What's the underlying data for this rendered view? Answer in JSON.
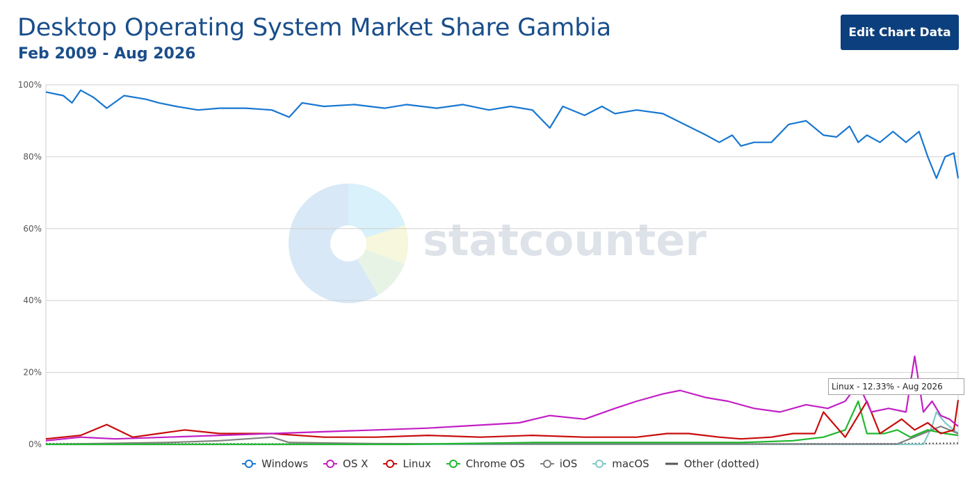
{
  "header": {
    "title": "Desktop Operating System Market Share Gambia",
    "subtitle": "Feb 2009 - Aug 2026",
    "edit_button": "Edit Chart Data"
  },
  "watermark": {
    "text": "statcounter"
  },
  "tooltip": {
    "text": "Linux - 12.33% - Aug 2026"
  },
  "colors": {
    "Windows": "#1777d0",
    "OS X": "#c21fc4",
    "Linux": "#c80b0b",
    "Chrome OS": "#1fb82e",
    "iOS": "#808080",
    "macOS": "#80c8c8",
    "Other (dotted)": "#555555",
    "title": "#1a4e8a",
    "button": "#0c3f7d"
  },
  "legend": [
    {
      "label": "Windows",
      "marker": "circle-icon"
    },
    {
      "label": "OS X",
      "marker": "circle-icon"
    },
    {
      "label": "Linux",
      "marker": "circle-icon"
    },
    {
      "label": "Chrome OS",
      "marker": "circle-icon"
    },
    {
      "label": "iOS",
      "marker": "circle-icon"
    },
    {
      "label": "macOS",
      "marker": "circle-icon"
    },
    {
      "label": "Other (dotted)",
      "marker": "line-icon"
    }
  ],
  "chart_data": {
    "type": "line",
    "x_start": "2009-02",
    "x_end": "2026-08",
    "ylim": [
      0,
      100
    ],
    "yticks": [
      "0%",
      "20%",
      "40%",
      "60%",
      "80%",
      "100%"
    ],
    "grid": true,
    "legend_position": "bottom",
    "series": [
      {
        "name": "Windows",
        "points": [
          [
            "2009-02",
            98
          ],
          [
            "2009-06",
            97
          ],
          [
            "2009-08",
            95
          ],
          [
            "2009-10",
            98.5
          ],
          [
            "2010-01",
            96.5
          ],
          [
            "2010-04",
            93.5
          ],
          [
            "2010-08",
            97
          ],
          [
            "2011-01",
            96
          ],
          [
            "2011-04",
            95
          ],
          [
            "2011-08",
            94
          ],
          [
            "2012-01",
            93
          ],
          [
            "2012-06",
            93.5
          ],
          [
            "2012-12",
            93.5
          ],
          [
            "2013-06",
            93
          ],
          [
            "2013-10",
            91
          ],
          [
            "2014-01",
            95
          ],
          [
            "2014-06",
            94
          ],
          [
            "2015-01",
            94.5
          ],
          [
            "2015-08",
            93.5
          ],
          [
            "2016-01",
            94.5
          ],
          [
            "2016-08",
            93.5
          ],
          [
            "2017-02",
            94.5
          ],
          [
            "2017-08",
            93
          ],
          [
            "2018-01",
            94
          ],
          [
            "2018-06",
            93
          ],
          [
            "2018-10",
            88
          ],
          [
            "2019-01",
            94
          ],
          [
            "2019-06",
            91.5
          ],
          [
            "2019-10",
            94
          ],
          [
            "2020-01",
            92
          ],
          [
            "2020-06",
            93
          ],
          [
            "2020-12",
            92
          ],
          [
            "2021-05",
            89
          ],
          [
            "2021-10",
            86
          ],
          [
            "2022-01",
            84
          ],
          [
            "2022-04",
            86
          ],
          [
            "2022-06",
            83
          ],
          [
            "2022-09",
            84
          ],
          [
            "2023-01",
            84
          ],
          [
            "2023-05",
            89
          ],
          [
            "2023-09",
            90
          ],
          [
            "2024-01",
            86
          ],
          [
            "2024-04",
            85.5
          ],
          [
            "2024-07",
            88.5
          ],
          [
            "2024-09",
            84
          ],
          [
            "2024-11",
            86
          ],
          [
            "2025-02",
            84
          ],
          [
            "2025-05",
            87
          ],
          [
            "2025-08",
            84
          ],
          [
            "2025-11",
            87
          ],
          [
            "2026-01",
            80
          ],
          [
            "2026-03",
            74
          ],
          [
            "2026-05",
            80
          ],
          [
            "2026-07",
            81
          ],
          [
            "2026-08",
            74
          ]
        ]
      },
      {
        "name": "OS X",
        "points": [
          [
            "2009-02",
            1
          ],
          [
            "2009-10",
            2
          ],
          [
            "2010-06",
            1.5
          ],
          [
            "2011-06",
            2
          ],
          [
            "2012-06",
            2.5
          ],
          [
            "2013-06",
            3
          ],
          [
            "2014-06",
            3.5
          ],
          [
            "2015-06",
            4
          ],
          [
            "2016-06",
            4.5
          ],
          [
            "2017-01",
            5
          ],
          [
            "2017-08",
            5.5
          ],
          [
            "2018-03",
            6
          ],
          [
            "2018-10",
            8
          ],
          [
            "2019-06",
            7
          ],
          [
            "2020-01",
            10
          ],
          [
            "2020-06",
            12
          ],
          [
            "2020-12",
            14
          ],
          [
            "2021-04",
            15
          ],
          [
            "2021-10",
            13
          ],
          [
            "2022-03",
            12
          ],
          [
            "2022-09",
            10
          ],
          [
            "2023-03",
            9
          ],
          [
            "2023-09",
            11
          ],
          [
            "2024-02",
            10
          ],
          [
            "2024-06",
            12
          ],
          [
            "2024-09",
            17
          ],
          [
            "2024-12",
            9
          ],
          [
            "2025-04",
            10
          ],
          [
            "2025-08",
            9
          ],
          [
            "2025-10",
            24.5
          ],
          [
            "2025-12",
            9
          ],
          [
            "2026-02",
            12
          ],
          [
            "2026-04",
            8
          ],
          [
            "2026-06",
            7
          ],
          [
            "2026-08",
            5
          ]
        ]
      },
      {
        "name": "Linux",
        "points": [
          [
            "2009-02",
            1.5
          ],
          [
            "2009-10",
            2.5
          ],
          [
            "2010-04",
            5.5
          ],
          [
            "2010-10",
            2
          ],
          [
            "2011-04",
            3
          ],
          [
            "2011-10",
            4
          ],
          [
            "2012-06",
            3
          ],
          [
            "2013-06",
            3
          ],
          [
            "2014-06",
            2
          ],
          [
            "2015-06",
            2
          ],
          [
            "2016-06",
            2.5
          ],
          [
            "2017-06",
            2
          ],
          [
            "2018-06",
            2.5
          ],
          [
            "2019-06",
            2
          ],
          [
            "2020-06",
            2
          ],
          [
            "2021-01",
            3
          ],
          [
            "2021-06",
            3
          ],
          [
            "2022-01",
            2
          ],
          [
            "2022-06",
            1.5
          ],
          [
            "2023-01",
            2
          ],
          [
            "2023-06",
            3
          ],
          [
            "2023-11",
            3
          ],
          [
            "2024-01",
            9
          ],
          [
            "2024-06",
            2
          ],
          [
            "2024-11",
            12
          ],
          [
            "2025-02",
            3
          ],
          [
            "2025-07",
            7
          ],
          [
            "2025-10",
            4
          ],
          [
            "2026-01",
            6
          ],
          [
            "2026-04",
            3
          ],
          [
            "2026-07",
            4
          ],
          [
            "2026-08",
            12.33
          ]
        ]
      },
      {
        "name": "Chrome OS",
        "points": [
          [
            "2009-02",
            0
          ],
          [
            "2016-01",
            0
          ],
          [
            "2018-06",
            0.5
          ],
          [
            "2020-06",
            0.5
          ],
          [
            "2022-06",
            0.5
          ],
          [
            "2023-06",
            1
          ],
          [
            "2024-01",
            2
          ],
          [
            "2024-06",
            4
          ],
          [
            "2024-09",
            12
          ],
          [
            "2024-11",
            3
          ],
          [
            "2025-03",
            3
          ],
          [
            "2025-06",
            4
          ],
          [
            "2025-09",
            2
          ],
          [
            "2026-01",
            4
          ],
          [
            "2026-05",
            3
          ],
          [
            "2026-08",
            2.5
          ]
        ]
      },
      {
        "name": "iOS",
        "points": [
          [
            "2009-02",
            0
          ],
          [
            "2011-06",
            0.5
          ],
          [
            "2012-06",
            1
          ],
          [
            "2013-06",
            2
          ],
          [
            "2013-10",
            0.5
          ],
          [
            "2015-06",
            0.2
          ],
          [
            "2017-06",
            0.1
          ],
          [
            "2019-06",
            0.1
          ],
          [
            "2022-06",
            0.1
          ],
          [
            "2025-06",
            0.1
          ],
          [
            "2026-04",
            5
          ],
          [
            "2026-08",
            3
          ]
        ]
      },
      {
        "name": "macOS",
        "points": [
          [
            "2009-02",
            0
          ],
          [
            "2020-06",
            0
          ],
          [
            "2025-12",
            0
          ],
          [
            "2026-02",
            5
          ],
          [
            "2026-03",
            9
          ],
          [
            "2026-05",
            6
          ],
          [
            "2026-07",
            4
          ],
          [
            "2026-08",
            3
          ]
        ]
      },
      {
        "name": "Other (dotted)",
        "points": [
          [
            "2009-02",
            0.2
          ],
          [
            "2015-06",
            0.1
          ],
          [
            "2020-06",
            0.1
          ],
          [
            "2025-06",
            0.2
          ],
          [
            "2026-08",
            0.3
          ]
        ]
      }
    ]
  }
}
